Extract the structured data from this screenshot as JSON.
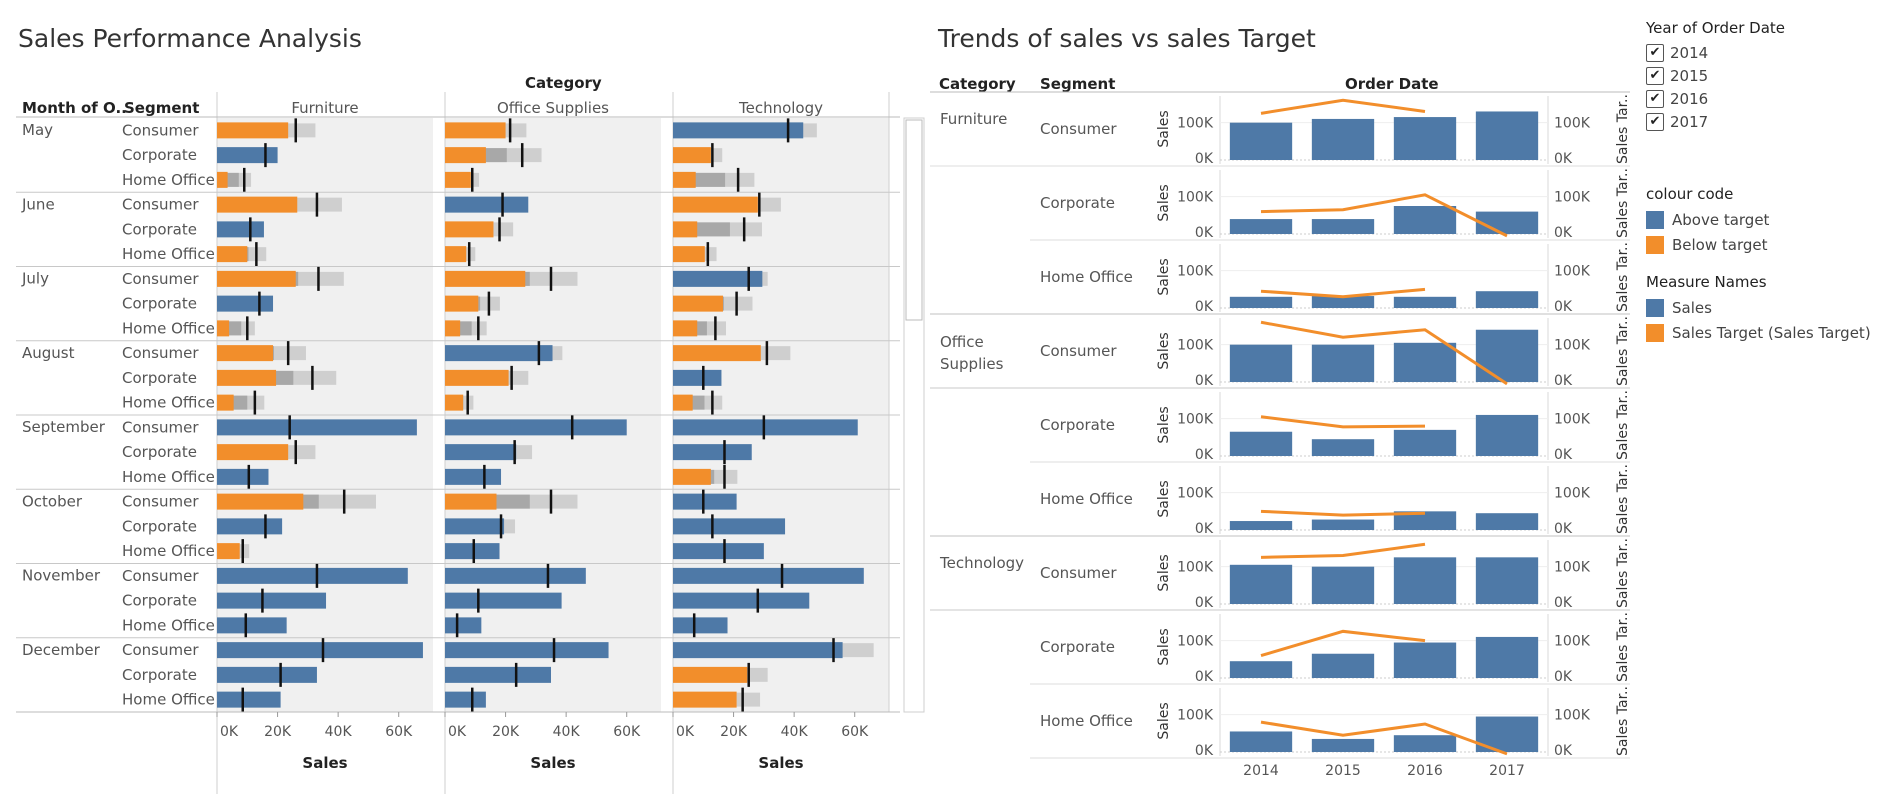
{
  "colors": {
    "above": "#4e79a7",
    "below": "#f28e2b",
    "band_dark": "#a8a8a8",
    "band_light": "#cfcfcf",
    "panel_bg": "#f0f0f0",
    "ref_line": "#111111"
  },
  "left_chart": {
    "title": "Sales Performance Analysis",
    "col_header_month": "Month of O..",
    "col_header_segment": "Segment",
    "category_header": "Category",
    "x_axis_title": "Sales",
    "x_ticks": [
      "0K",
      "20K",
      "40K",
      "60K"
    ]
  },
  "right_chart": {
    "title": "Trends of sales vs sales Target",
    "col_header_category": "Category",
    "col_header_segment": "Segment",
    "col_header_order_date": "Order Date",
    "y_left_label": "Sales",
    "y_right_label": "Sales Tar..",
    "y_ticks": [
      "100K",
      "0K"
    ],
    "x_ticks": [
      "2014",
      "2015",
      "2016",
      "2017"
    ]
  },
  "legend": {
    "year_title": "Year of Order Date",
    "years": [
      "2014",
      "2015",
      "2016",
      "2017"
    ],
    "check_glyph": "✔",
    "colour_title": "colour code",
    "colour_items": [
      "Above target",
      "Below target"
    ],
    "measure_title": "Measure Names",
    "measure_items": [
      "Sales",
      "Sales Target (Sales Target)"
    ]
  },
  "chart_data": [
    {
      "type": "bar",
      "title": "Sales Performance Analysis",
      "xlabel": "Sales",
      "xlim": [
        0,
        70000
      ],
      "categories": [
        "Furniture",
        "Office Supplies",
        "Technology"
      ],
      "months": [
        "May",
        "June",
        "July",
        "August",
        "September",
        "October",
        "November",
        "December"
      ],
      "segments": [
        "Consumer",
        "Corporate",
        "Home Office"
      ],
      "sales": {
        "Furniture": [
          [
            23500,
            20000,
            3500
          ],
          [
            26500,
            15500,
            10000
          ],
          [
            26000,
            18500,
            4000
          ],
          [
            18500,
            19500,
            5500
          ],
          [
            66000,
            23500,
            17000
          ],
          [
            28500,
            21500,
            7500
          ],
          [
            63000,
            36000,
            23000
          ],
          [
            68000,
            33000,
            21000
          ]
        ],
        "Office Supplies": [
          [
            20000,
            13500,
            8500
          ],
          [
            27500,
            16000,
            7000
          ],
          [
            26500,
            11000,
            5000
          ],
          [
            35500,
            21000,
            6000
          ],
          [
            60000,
            23500,
            18500
          ],
          [
            17000,
            19500,
            18000
          ],
          [
            46500,
            38500,
            12000
          ],
          [
            54000,
            35000,
            13500
          ]
        ],
        "Technology": [
          [
            43000,
            12500,
            7500
          ],
          [
            28000,
            8000,
            10500
          ],
          [
            29500,
            16500,
            8000
          ],
          [
            29000,
            16000,
            6500
          ],
          [
            61000,
            26000,
            12500
          ],
          [
            21000,
            37000,
            30000
          ],
          [
            63000,
            45000,
            18000
          ],
          [
            56000,
            24500,
            21000
          ]
        ]
      },
      "targets": {
        "Furniture": [
          [
            26000,
            16000,
            9000
          ],
          [
            33000,
            11000,
            13000
          ],
          [
            33500,
            14000,
            10000
          ],
          [
            23500,
            31500,
            12500
          ],
          [
            24000,
            26000,
            10500
          ],
          [
            42000,
            16000,
            8500
          ],
          [
            33000,
            15000,
            9500
          ],
          [
            35000,
            21000,
            8500
          ]
        ],
        "Office Supplies": [
          [
            21500,
            25500,
            9000
          ],
          [
            19000,
            18000,
            8000
          ],
          [
            35000,
            14500,
            11000
          ],
          [
            31000,
            22000,
            7500
          ],
          [
            42000,
            23000,
            13000
          ],
          [
            35000,
            18500,
            9500
          ],
          [
            34000,
            11000,
            4000
          ],
          [
            36000,
            23500,
            9000
          ]
        ],
        "Technology": [
          [
            38000,
            13000,
            21500
          ],
          [
            28500,
            23500,
            11500
          ],
          [
            25000,
            21000,
            14000
          ],
          [
            31000,
            10000,
            13000
          ],
          [
            30000,
            17000,
            17000
          ],
          [
            10000,
            13000,
            17000
          ],
          [
            36000,
            28000,
            7000
          ],
          [
            53000,
            25000,
            23000
          ]
        ]
      }
    },
    {
      "type": "bar",
      "title": "Trends of sales vs sales Target",
      "xlabel": "Order Date",
      "ylabel": "Sales",
      "y2label": "Sales Tar..",
      "ylim": [
        0,
        150000
      ],
      "categories": [
        "2014",
        "2015",
        "2016",
        "2017"
      ],
      "rows": [
        {
          "category": "Furniture",
          "segment": "Consumer",
          "sales": [
            100000,
            110000,
            115000,
            130000
          ],
          "target": [
            125000,
            160000,
            130000,
            null
          ]
        },
        {
          "category": "Furniture",
          "segment": "Corporate",
          "sales": [
            40000,
            40000,
            75000,
            60000
          ],
          "target": [
            60000,
            65000,
            105000,
            -5000
          ]
        },
        {
          "category": "Furniture",
          "segment": "Home Office",
          "sales": [
            30000,
            32000,
            30000,
            45000
          ],
          "target": [
            45000,
            30000,
            50000,
            null
          ]
        },
        {
          "category": "Office Supplies",
          "segment": "Consumer",
          "sales": [
            100000,
            100000,
            105000,
            140000
          ],
          "target": [
            160000,
            120000,
            140000,
            -5000
          ]
        },
        {
          "category": "Office Supplies",
          "segment": "Corporate",
          "sales": [
            65000,
            45000,
            70000,
            110000
          ],
          "target": [
            105000,
            78000,
            80000,
            null
          ]
        },
        {
          "category": "Office Supplies",
          "segment": "Home Office",
          "sales": [
            24000,
            28000,
            50000,
            45000
          ],
          "target": [
            50000,
            40000,
            45000,
            null
          ]
        },
        {
          "category": "Technology",
          "segment": "Consumer",
          "sales": [
            105000,
            100000,
            125000,
            125000
          ],
          "target": [
            125000,
            130000,
            160000,
            null
          ]
        },
        {
          "category": "Technology",
          "segment": "Corporate",
          "sales": [
            45000,
            65000,
            95000,
            110000
          ],
          "target": [
            60000,
            125000,
            100000,
            null
          ]
        },
        {
          "category": "Technology",
          "segment": "Home Office",
          "sales": [
            55000,
            35000,
            45000,
            95000
          ],
          "target": [
            80000,
            45000,
            75000,
            -5000
          ]
        }
      ]
    }
  ]
}
